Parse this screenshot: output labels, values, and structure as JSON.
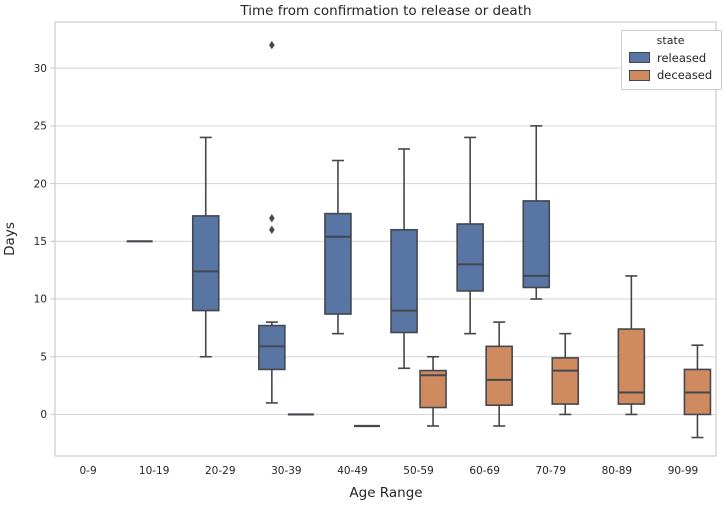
{
  "chart_data": {
    "type": "boxplot",
    "title": "Time from confirmation to release or death",
    "xlabel": "Age Range",
    "ylabel": "Days",
    "categories": [
      "0-9",
      "10-19",
      "20-29",
      "30-39",
      "40-49",
      "50-59",
      "60-69",
      "70-79",
      "80-89",
      "90-99"
    ],
    "y_ticks": [
      0,
      5,
      10,
      15,
      20,
      25,
      30
    ],
    "ylim": [
      -3.6,
      34
    ],
    "grid": "horizontal",
    "units": "days",
    "legend": {
      "title": "state",
      "position": "upper-right",
      "entries": [
        {
          "label": "released",
          "color": "#5875A4"
        },
        {
          "label": "deceased",
          "color": "#CF8A60"
        }
      ]
    },
    "series": [
      {
        "name": "released",
        "color": "#5875A4",
        "boxes": [
          null,
          {
            "lo": 15,
            "q1": 15,
            "med": 15,
            "q3": 15,
            "hi": 15
          },
          {
            "lo": 5,
            "q1": 9,
            "med": 12.4,
            "q3": 17.2,
            "hi": 24
          },
          {
            "lo": 1,
            "q1": 3.9,
            "med": 5.9,
            "q3": 7.7,
            "hi": 8,
            "outliers": [
              16,
              17,
              32
            ]
          },
          {
            "lo": 7,
            "q1": 8.7,
            "med": 15.4,
            "q3": 17.4,
            "hi": 22
          },
          {
            "lo": 4,
            "q1": 7.1,
            "med": 9,
            "q3": 16,
            "hi": 23
          },
          {
            "lo": 7,
            "q1": 10.7,
            "med": 13,
            "q3": 16.5,
            "hi": 24
          },
          {
            "lo": 10,
            "q1": 11,
            "med": 12,
            "q3": 18.5,
            "hi": 25
          },
          null,
          null
        ]
      },
      {
        "name": "deceased",
        "color": "#CF8A60",
        "boxes": [
          null,
          null,
          null,
          {
            "lo": 0,
            "q1": 0,
            "med": 0,
            "q3": 0,
            "hi": 0
          },
          {
            "lo": -1,
            "q1": -1,
            "med": -1,
            "q3": -1,
            "hi": -1
          },
          {
            "lo": -1,
            "q1": 0.6,
            "med": 3.4,
            "q3": 3.8,
            "hi": 5
          },
          {
            "lo": -1,
            "q1": 0.8,
            "med": 3,
            "q3": 5.9,
            "hi": 8
          },
          {
            "lo": 0,
            "q1": 0.9,
            "med": 3.8,
            "q3": 4.9,
            "hi": 7
          },
          {
            "lo": 0,
            "q1": 0.9,
            "med": 1.9,
            "q3": 7.4,
            "hi": 12
          },
          {
            "lo": -2,
            "q1": 0,
            "med": 1.9,
            "q3": 3.9,
            "hi": 6
          }
        ]
      }
    ]
  },
  "style": {
    "box_edge": "#43474E",
    "grid_color": "#D9D9D9",
    "spine_color": "#CCCCCC",
    "text_color": "#262626",
    "background": "#FFFFFF"
  }
}
